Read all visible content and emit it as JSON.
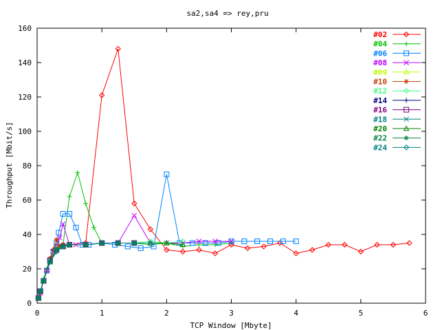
{
  "chart_data": {
    "type": "line",
    "title": "sa2,sa4 => rey,pru",
    "xlabel": "TCP Window [Mbyte]",
    "ylabel": "Throughput [Mbit/s]",
    "xlim": [
      0,
      6
    ],
    "ylim": [
      0,
      160
    ],
    "xticks": [
      "0",
      "1",
      "2",
      "3",
      "4",
      "5",
      "6"
    ],
    "yticks": [
      "0",
      "20",
      "40",
      "60",
      "80",
      "100",
      "120",
      "140",
      "160"
    ],
    "grid": false,
    "legend_position": "top-right",
    "series": [
      {
        "name": "#02",
        "color": "#ff0000",
        "marker": "diamond",
        "x": [
          0.02,
          0.05,
          0.1,
          0.15,
          0.2,
          0.25,
          0.3,
          0.4,
          0.5,
          0.75,
          1.0,
          1.25,
          1.5,
          1.75,
          2.0,
          2.25,
          2.5,
          2.75,
          3.0,
          3.25,
          3.5,
          3.75,
          4.0,
          4.25,
          4.5,
          4.75,
          5.0,
          5.25,
          5.5,
          5.75
        ],
        "y": [
          3,
          6,
          13,
          19,
          26,
          31,
          33,
          34,
          34,
          35,
          121,
          148,
          58,
          43,
          31,
          30,
          31,
          29,
          34,
          32,
          33,
          35,
          29,
          31,
          34,
          34,
          30,
          34,
          34,
          35
        ]
      },
      {
        "name": "#04",
        "color": "#00c000",
        "marker": "plus",
        "x": [
          0.02,
          0.05,
          0.1,
          0.15,
          0.2,
          0.25,
          0.3,
          0.4,
          0.5,
          0.625,
          0.75,
          0.875,
          1.0,
          1.25,
          1.5,
          1.75,
          2.0,
          2.25,
          2.5,
          2.75,
          3.0
        ],
        "y": [
          3,
          7,
          14,
          20,
          26,
          31,
          33,
          34,
          62,
          76,
          58,
          44,
          35,
          35,
          35,
          34,
          35,
          33,
          34,
          34,
          35
        ]
      },
      {
        "name": "#06",
        "color": "#0080ff",
        "marker": "square",
        "x": [
          0.02,
          0.05,
          0.1,
          0.15,
          0.2,
          0.25,
          0.3,
          0.333,
          0.4,
          0.5,
          0.6,
          0.7,
          0.8,
          1.0,
          1.2,
          1.4,
          1.6,
          1.8,
          2.0,
          2.2,
          2.4,
          2.6,
          2.8,
          3.0,
          3.2,
          3.4,
          3.6,
          3.8,
          4.0
        ],
        "y": [
          3,
          7,
          13,
          19,
          25,
          30,
          35,
          41,
          52,
          52,
          44,
          34,
          34,
          35,
          34,
          33,
          32,
          33,
          75,
          35,
          35,
          35,
          35,
          36,
          36,
          36,
          36,
          36,
          36
        ]
      },
      {
        "name": "#08",
        "color": "#c000ff",
        "marker": "x",
        "x": [
          0.02,
          0.05,
          0.1,
          0.15,
          0.2,
          0.25,
          0.3,
          0.35,
          0.4,
          0.5,
          0.6,
          0.75,
          1.0,
          1.25,
          1.5,
          1.75,
          2.0,
          2.25,
          2.5,
          2.75,
          3.0
        ],
        "y": [
          3,
          6,
          13,
          19,
          25,
          30,
          33,
          38,
          46,
          34,
          34,
          34,
          35,
          35,
          51,
          35,
          35,
          35,
          36,
          36,
          36
        ]
      },
      {
        "name": "#09",
        "color": "#c0ff00",
        "marker": "triangle",
        "x": [
          0.02,
          0.05,
          0.1,
          0.2,
          0.3,
          0.4,
          0.5,
          0.75,
          1.0,
          1.25,
          1.5,
          1.75,
          2.0
        ],
        "y": [
          3,
          7,
          13,
          25,
          32,
          33,
          34,
          34,
          35,
          35,
          35,
          35,
          35
        ]
      },
      {
        "name": "#10",
        "color": "#c04000",
        "marker": "star",
        "x": [
          0.02,
          0.05,
          0.1,
          0.2,
          0.3,
          0.35,
          0.4,
          0.5,
          0.75,
          1.0,
          1.25,
          1.5
        ],
        "y": [
          3,
          7,
          13,
          25,
          37,
          33,
          34,
          34,
          34,
          35,
          35,
          35
        ]
      },
      {
        "name": "#12",
        "color": "#40ff80",
        "marker": "diamond",
        "x": [
          0.02,
          0.05,
          0.1,
          0.2,
          0.3,
          0.4,
          0.5,
          0.75,
          1.0,
          1.25,
          1.5,
          1.75,
          2.0,
          2.25
        ],
        "y": [
          3,
          7,
          13,
          25,
          32,
          33,
          34,
          34,
          35,
          35,
          35,
          36,
          35,
          36
        ]
      },
      {
        "name": "#14",
        "color": "#000080",
        "marker": "plus",
        "x": [
          0.02,
          0.05,
          0.1,
          0.2,
          0.3,
          0.4,
          0.5,
          0.75,
          1.0,
          1.25,
          1.5
        ],
        "y": [
          3,
          7,
          13,
          25,
          31,
          33,
          34,
          34,
          35,
          35,
          35
        ]
      },
      {
        "name": "#16",
        "color": "#800080",
        "marker": "square",
        "x": [
          0.02,
          0.05,
          0.1,
          0.2,
          0.3,
          0.4,
          0.5,
          0.75,
          1.0,
          1.25,
          1.5
        ],
        "y": [
          3,
          7,
          13,
          25,
          31,
          33,
          34,
          34,
          35,
          35,
          35
        ]
      },
      {
        "name": "#18",
        "color": "#008080",
        "marker": "x",
        "x": [
          0.02,
          0.05,
          0.1,
          0.2,
          0.3,
          0.4,
          0.5,
          0.75,
          1.0,
          1.25,
          1.5
        ],
        "y": [
          3,
          7,
          13,
          24,
          31,
          33,
          34,
          34,
          35,
          35,
          35
        ]
      },
      {
        "name": "#20",
        "color": "#008000",
        "marker": "triangle",
        "x": [
          0.02,
          0.05,
          0.1,
          0.2,
          0.3,
          0.4,
          0.5,
          0.75,
          1.0,
          1.25,
          1.5,
          1.75,
          2.0,
          2.25
        ],
        "y": [
          3,
          7,
          13,
          24,
          31,
          33,
          34,
          34,
          35,
          35,
          35,
          35,
          35,
          34
        ]
      },
      {
        "name": "#22",
        "color": "#008040",
        "marker": "star",
        "x": [
          0.02,
          0.05,
          0.1,
          0.2,
          0.3,
          0.4,
          0.5,
          0.75,
          1.0,
          1.25,
          1.5
        ],
        "y": [
          3,
          7,
          13,
          24,
          31,
          33,
          34,
          34,
          35,
          35,
          35
        ]
      },
      {
        "name": "#24",
        "color": "#008080",
        "marker": "diamond",
        "x": [
          0.02,
          0.05,
          0.1,
          0.2,
          0.3,
          0.4,
          0.5,
          0.75,
          1.0,
          1.25,
          1.5,
          1.75
        ],
        "y": [
          3,
          7,
          13,
          24,
          30,
          33,
          34,
          34,
          35,
          35,
          35,
          35
        ]
      }
    ]
  }
}
